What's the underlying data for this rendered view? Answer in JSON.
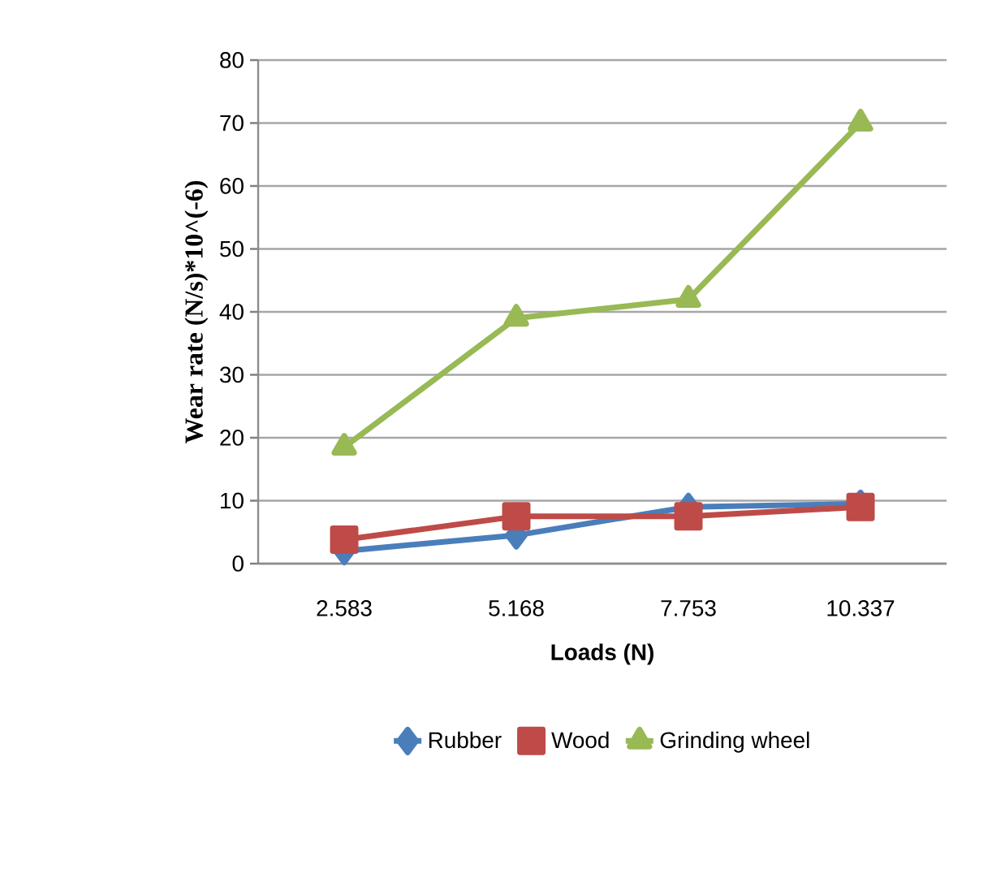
{
  "chart_data": {
    "type": "line",
    "xlabel": "Loads (N)",
    "ylabel": "Wear rate (N/s)*10^(-6)",
    "categories": [
      "2.583",
      "5.168",
      "7.753",
      "10.337"
    ],
    "series": [
      {
        "name": "Rubber",
        "color": "#4a7ebb",
        "marker": "diamond",
        "values": [
          2,
          4.5,
          9,
          9.5
        ]
      },
      {
        "name": "Wood",
        "color": "#be4b48",
        "marker": "square",
        "values": [
          3.8,
          7.5,
          7.5,
          9
        ]
      },
      {
        "name": "Grinding wheel",
        "color": "#98b954",
        "marker": "triangle",
        "values": [
          18.5,
          39,
          42,
          70
        ]
      }
    ],
    "ylim": [
      0,
      80
    ],
    "yticks": [
      0,
      10,
      20,
      30,
      40,
      50,
      60,
      70,
      80
    ],
    "grid": "y",
    "legend": "bottom"
  }
}
